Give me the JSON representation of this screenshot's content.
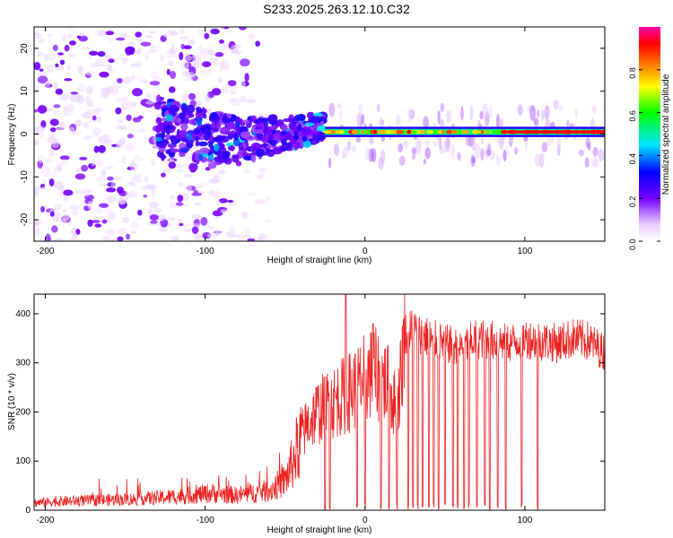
{
  "figure_title": "S233.2025.263.12.10.C32",
  "chart_data": [
    {
      "type": "heatmap",
      "title": "S233.2025.263.12.10.C32",
      "xlabel": "Height of straight line (km)",
      "ylabel": "Frequency (Hz)",
      "xlim": [
        -207,
        150
      ],
      "ylim": [
        -25,
        25
      ],
      "xticks": [
        -200,
        -100,
        0,
        100
      ],
      "yticks": [
        -20,
        -10,
        0,
        10,
        20
      ],
      "colorbar": {
        "label": "Normalized spectral amplitude",
        "range": [
          0,
          1
        ],
        "ticks": [
          0.0,
          0.2,
          0.4,
          0.6,
          0.8
        ],
        "colormap": [
          "#ffffff",
          "#e6ccff",
          "#7700ff",
          "#0000ff",
          "#00e6ff",
          "#00ff00",
          "#ffff00",
          "#ff8000",
          "#ff0000",
          "#ff00aa"
        ]
      },
      "features": [
        {
          "name": "diffuse noise",
          "x_range": [
            -207,
            -100
          ],
          "freq_range": [
            -25,
            25
          ],
          "amplitude": 0.1
        },
        {
          "name": "converging band",
          "x_range": [
            -130,
            -25
          ],
          "freq_center": 2,
          "freq_halfwidth": 6,
          "amplitude": 0.3
        },
        {
          "name": "narrow line",
          "x_range": [
            -25,
            150
          ],
          "freq_center": 0.5,
          "freq_halfwidth": 1,
          "amplitude": 0.9
        }
      ]
    },
    {
      "type": "line",
      "xlabel": "Height of straight line (km)",
      "ylabel": "SNR (10 * v/v)",
      "xlim": [
        -207,
        150
      ],
      "ylim": [
        0,
        440
      ],
      "xticks": [
        -200,
        -100,
        0,
        100
      ],
      "yticks": [
        0,
        100,
        200,
        300,
        400
      ],
      "series": [
        {
          "name": "SNR",
          "color": "#ee2222",
          "x": [
            -207,
            -190,
            -170,
            -150,
            -130,
            -110,
            -95,
            -80,
            -70,
            -60,
            -50,
            -45,
            -40,
            -35,
            -30,
            -25,
            -20,
            -15,
            -10,
            -5,
            0,
            5,
            10,
            15,
            20,
            25,
            30,
            40,
            50,
            60,
            70,
            80,
            90,
            100,
            110,
            120,
            130,
            140,
            150
          ],
          "values": [
            15,
            18,
            20,
            22,
            25,
            30,
            35,
            30,
            35,
            40,
            60,
            100,
            150,
            180,
            200,
            210,
            220,
            230,
            240,
            250,
            270,
            280,
            270,
            250,
            200,
            360,
            370,
            350,
            340,
            330,
            350,
            345,
            340,
            350,
            345,
            340,
            350,
            345,
            320
          ]
        }
      ],
      "dropouts": [
        -25,
        -22,
        -5,
        0,
        5,
        10,
        15,
        20,
        27,
        30,
        33,
        36,
        40,
        43,
        46,
        50,
        55,
        58,
        62,
        65,
        70,
        75,
        78,
        83,
        88,
        98,
        108
      ]
    }
  ]
}
